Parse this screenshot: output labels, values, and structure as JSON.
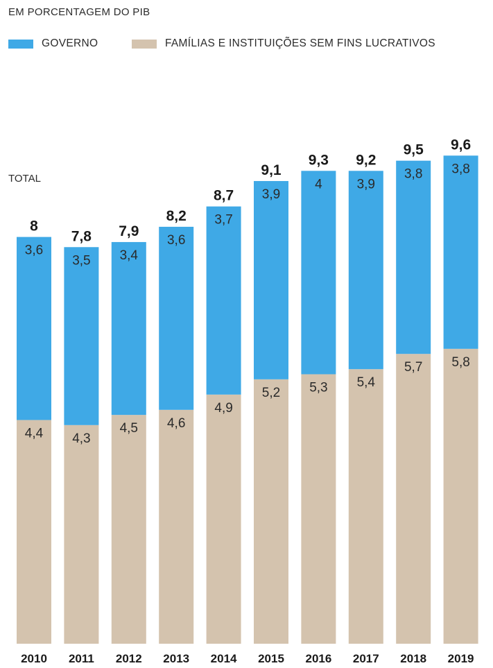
{
  "chart_data": {
    "type": "bar",
    "stacked": true,
    "title": "",
    "subtitle": "EM PORCENTAGEM DO PIB",
    "total_label": "TOTAL",
    "categories": [
      "2010",
      "2011",
      "2012",
      "2013",
      "2014",
      "2015",
      "2016",
      "2017",
      "2018",
      "2019"
    ],
    "series": [
      {
        "name": "FAMÍLIAS E INSTITUIÇÕES SEM FINS LUCRATIVOS",
        "color": "#d4c3ae",
        "values": [
          4.4,
          4.3,
          4.5,
          4.6,
          4.9,
          5.2,
          5.3,
          5.4,
          5.7,
          5.8
        ],
        "labels": [
          "4,4",
          "4,3",
          "4,5",
          "4,6",
          "4,9",
          "5,2",
          "5,3",
          "5,4",
          "5,7",
          "5,8"
        ]
      },
      {
        "name": "GOVERNO",
        "color": "#3fa9e6",
        "values": [
          3.6,
          3.5,
          3.4,
          3.6,
          3.7,
          3.9,
          4.0,
          3.9,
          3.8,
          3.8
        ],
        "labels": [
          "3,6",
          "3,5",
          "3,4",
          "3,6",
          "3,7",
          "3,9",
          "4",
          "3,9",
          "3,8",
          "3,8"
        ]
      }
    ],
    "totals": [
      8,
      7.8,
      7.9,
      8.2,
      8.7,
      9.1,
      9.3,
      9.2,
      9.5,
      9.6
    ],
    "total_labels": [
      "8",
      "7,8",
      "7,9",
      "8,2",
      "8,7",
      "9,1",
      "9,3",
      "9,2",
      "9,5",
      "9,6"
    ],
    "legend_order": [
      "GOVERNO",
      "FAMÍLIAS E INSTITUIÇÕES SEM FINS LUCRATIVOS"
    ],
    "legend_position": "top-left",
    "ylim": [
      0,
      9.6
    ],
    "grid": false
  }
}
